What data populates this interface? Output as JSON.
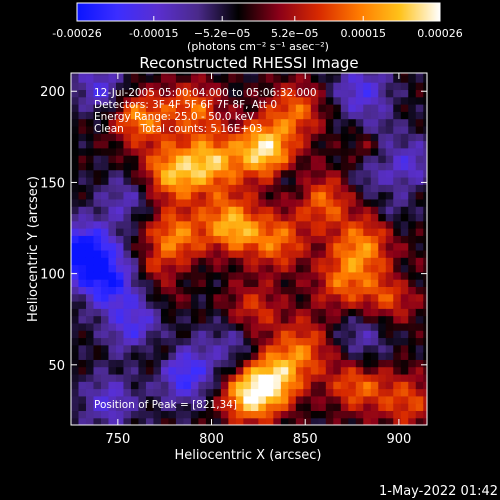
{
  "chart_data": {
    "type": "heatmap",
    "title": "Reconstructed RHESSI Image",
    "xlabel": "Heliocentric X (arcsec)",
    "ylabel": "Heliocentric Y (arcsec)",
    "xlim": [
      725,
      915
    ],
    "ylim": [
      17,
      210
    ],
    "x_ticks": [
      750,
      800,
      850,
      900
    ],
    "y_ticks": [
      50,
      100,
      150,
      200
    ],
    "colorbar": {
      "range": [
        -0.00026,
        0.00026
      ],
      "tick_values": [
        -0.00026,
        -0.00015,
        -5.2e-05,
        5.2e-05,
        0.00015,
        0.00026
      ],
      "tick_labels": [
        "-0.00026",
        "-0.00015",
        "−5.2e−05",
        "5.2e−05",
        "0.00015",
        "0.00026"
      ],
      "unit_label": "(photons cm⁻² s⁻¹ asec⁻²)",
      "colormap": [
        "#0a14ff",
        "#3c2eff",
        "#5a2fd0",
        "#4a2a8a",
        "#000000",
        "#8a0018",
        "#d82a00",
        "#ff7b00",
        "#ffc21a",
        "#ffffff"
      ]
    },
    "annotations": [
      "12-Jul-2005 05:00:04.000 to 05:06:32.000",
      "Detectors: 3F 4F 5F 6F 7F 8F, Att 0",
      "Energy Range: 25.0 - 50.0 keV",
      "Clean     Total counts: 5.16E+03"
    ],
    "peak_label": "Position of Peak = [821,34]",
    "peak": {
      "x": 821,
      "y": 34
    },
    "hotspots": [
      {
        "x": 828,
        "y": 168,
        "v": 0.00026
      },
      {
        "x": 800,
        "y": 160,
        "v": 0.00022
      },
      {
        "x": 778,
        "y": 155,
        "v": 0.0002
      },
      {
        "x": 762,
        "y": 185,
        "v": 0.00016
      },
      {
        "x": 790,
        "y": 190,
        "v": 0.00016
      },
      {
        "x": 845,
        "y": 190,
        "v": 0.00015
      },
      {
        "x": 780,
        "y": 120,
        "v": 0.00018
      },
      {
        "x": 810,
        "y": 128,
        "v": 0.0002
      },
      {
        "x": 835,
        "y": 118,
        "v": 0.00016
      },
      {
        "x": 860,
        "y": 140,
        "v": 0.00015
      },
      {
        "x": 880,
        "y": 115,
        "v": 0.00017
      },
      {
        "x": 870,
        "y": 95,
        "v": 0.00014
      },
      {
        "x": 895,
        "y": 88,
        "v": 0.00013
      },
      {
        "x": 822,
        "y": 80,
        "v": 0.00012
      },
      {
        "x": 850,
        "y": 60,
        "v": 0.00013
      },
      {
        "x": 821,
        "y": 34,
        "v": 0.00026
      },
      {
        "x": 835,
        "y": 45,
        "v": 0.00018
      },
      {
        "x": 878,
        "y": 40,
        "v": 0.00016
      },
      {
        "x": 905,
        "y": 30,
        "v": 0.00013
      },
      {
        "x": 770,
        "y": 60,
        "v": 6e-05
      }
    ],
    "coldspots": [
      {
        "x": 732,
        "y": 112,
        "v": -0.00026
      },
      {
        "x": 745,
        "y": 95,
        "v": -0.00018
      },
      {
        "x": 760,
        "y": 70,
        "v": -0.00016
      },
      {
        "x": 785,
        "y": 45,
        "v": -0.00018
      },
      {
        "x": 745,
        "y": 30,
        "v": -0.00012
      },
      {
        "x": 810,
        "y": 60,
        "v": -0.00012
      },
      {
        "x": 880,
        "y": 200,
        "v": -0.00014
      },
      {
        "x": 905,
        "y": 160,
        "v": -0.00012
      },
      {
        "x": 880,
        "y": 65,
        "v": -0.0001
      },
      {
        "x": 740,
        "y": 205,
        "v": -0.0001
      },
      {
        "x": 755,
        "y": 140,
        "v": -0.0001
      }
    ]
  },
  "timestamp": "1-May-2022 01:42"
}
